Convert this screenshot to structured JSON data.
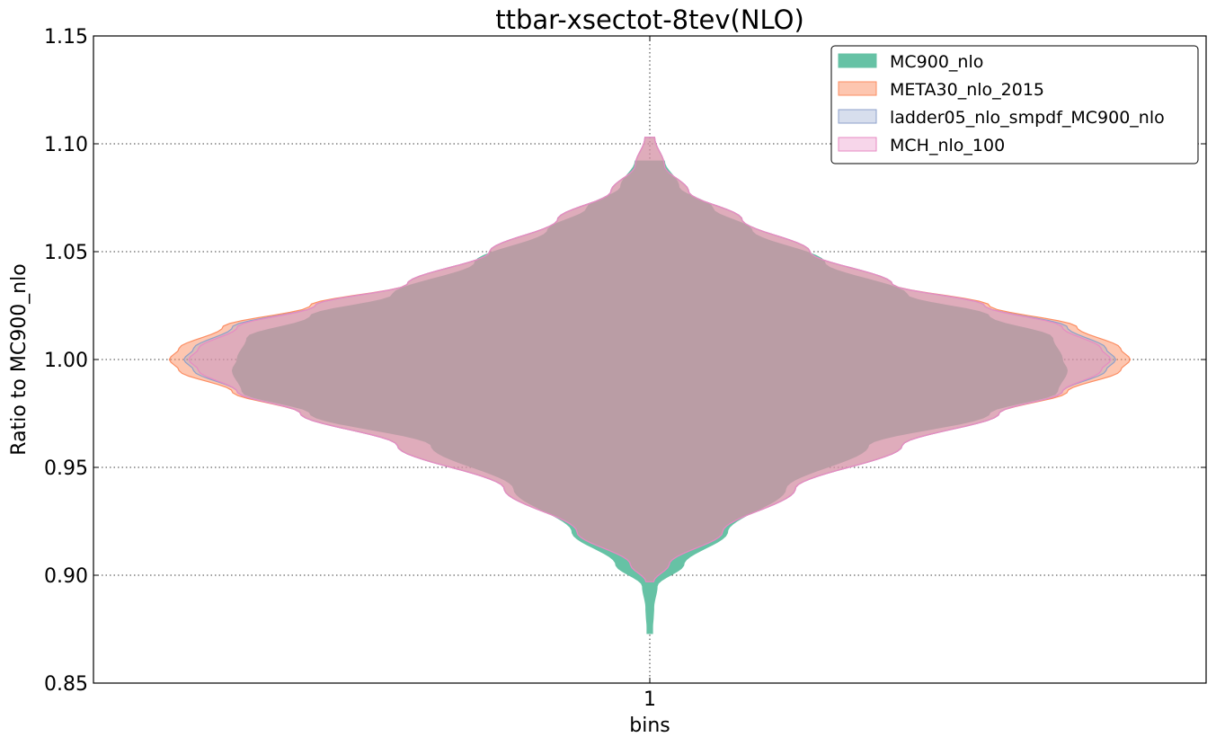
{
  "chart_data": {
    "type": "violin",
    "title": "ttbar-xsectot-8tev(NLO)",
    "xlabel": "bins",
    "ylabel": "Ratio to MC900_nlo",
    "categories": [
      "1"
    ],
    "xtick_labels": [
      "1"
    ],
    "ylim": [
      0.85,
      1.15
    ],
    "yticks": [
      0.85,
      0.9,
      0.95,
      1.0,
      1.05,
      1.1,
      1.15
    ],
    "ytick_labels": [
      "0.85",
      "0.90",
      "0.95",
      "1.00",
      "1.05",
      "1.10",
      "1.15"
    ],
    "grid": true,
    "legend_position": "upper right",
    "series": [
      {
        "name": "MC900_nlo",
        "color": "#66c2a5",
        "fill_opacity": 1.0,
        "range": [
          0.873,
          1.092
        ],
        "density_profile": [
          [
            0.873,
            0.005
          ],
          [
            0.885,
            0.008
          ],
          [
            0.895,
            0.015
          ],
          [
            0.905,
            0.07
          ],
          [
            0.92,
            0.16
          ],
          [
            0.94,
            0.28
          ],
          [
            0.96,
            0.45
          ],
          [
            0.975,
            0.7
          ],
          [
            0.985,
            0.84
          ],
          [
            0.995,
            0.86
          ],
          [
            1.0,
            0.85
          ],
          [
            1.01,
            0.83
          ],
          [
            1.02,
            0.7
          ],
          [
            1.03,
            0.53
          ],
          [
            1.045,
            0.36
          ],
          [
            1.06,
            0.21
          ],
          [
            1.07,
            0.13
          ],
          [
            1.08,
            0.06
          ],
          [
            1.092,
            0.03
          ]
        ]
      },
      {
        "name": "META30_nlo_2015",
        "color": "#fc8d62",
        "fill_opacity": 0.5,
        "range": [
          0.897,
          1.103
        ],
        "density_profile": [
          [
            0.897,
            0.008
          ],
          [
            0.905,
            0.04
          ],
          [
            0.92,
            0.15
          ],
          [
            0.94,
            0.3
          ],
          [
            0.96,
            0.52
          ],
          [
            0.975,
            0.72
          ],
          [
            0.985,
            0.86
          ],
          [
            0.995,
            0.97
          ],
          [
            1.0,
            0.99
          ],
          [
            1.005,
            0.97
          ],
          [
            1.015,
            0.88
          ],
          [
            1.025,
            0.7
          ],
          [
            1.035,
            0.5
          ],
          [
            1.05,
            0.33
          ],
          [
            1.065,
            0.19
          ],
          [
            1.078,
            0.08
          ],
          [
            1.09,
            0.03
          ],
          [
            1.103,
            0.01
          ]
        ]
      },
      {
        "name": "ladder05_nlo_smpdf_MC900_nlo",
        "color": "#8da0cb",
        "fill_opacity": 0.3,
        "range": [
          0.897,
          1.103
        ],
        "density_profile": [
          [
            0.897,
            0.008
          ],
          [
            0.905,
            0.04
          ],
          [
            0.92,
            0.15
          ],
          [
            0.94,
            0.3
          ],
          [
            0.96,
            0.52
          ],
          [
            0.975,
            0.72
          ],
          [
            0.985,
            0.85
          ],
          [
            0.995,
            0.94
          ],
          [
            1.0,
            0.96
          ],
          [
            1.005,
            0.94
          ],
          [
            1.015,
            0.86
          ],
          [
            1.025,
            0.69
          ],
          [
            1.035,
            0.5
          ],
          [
            1.05,
            0.33
          ],
          [
            1.065,
            0.19
          ],
          [
            1.078,
            0.08
          ],
          [
            1.09,
            0.03
          ],
          [
            1.103,
            0.01
          ]
        ]
      },
      {
        "name": "MCH_nlo_100",
        "color": "#e78ac3",
        "fill_opacity": 0.3,
        "range": [
          0.897,
          1.103
        ],
        "density_profile": [
          [
            0.897,
            0.008
          ],
          [
            0.905,
            0.04
          ],
          [
            0.92,
            0.15
          ],
          [
            0.94,
            0.3
          ],
          [
            0.96,
            0.52
          ],
          [
            0.975,
            0.72
          ],
          [
            0.985,
            0.85
          ],
          [
            0.995,
            0.93
          ],
          [
            1.0,
            0.95
          ],
          [
            1.005,
            0.93
          ],
          [
            1.015,
            0.85
          ],
          [
            1.025,
            0.69
          ],
          [
            1.035,
            0.5
          ],
          [
            1.05,
            0.33
          ],
          [
            1.065,
            0.19
          ],
          [
            1.078,
            0.08
          ],
          [
            1.09,
            0.03
          ],
          [
            1.103,
            0.01
          ]
        ]
      }
    ]
  }
}
